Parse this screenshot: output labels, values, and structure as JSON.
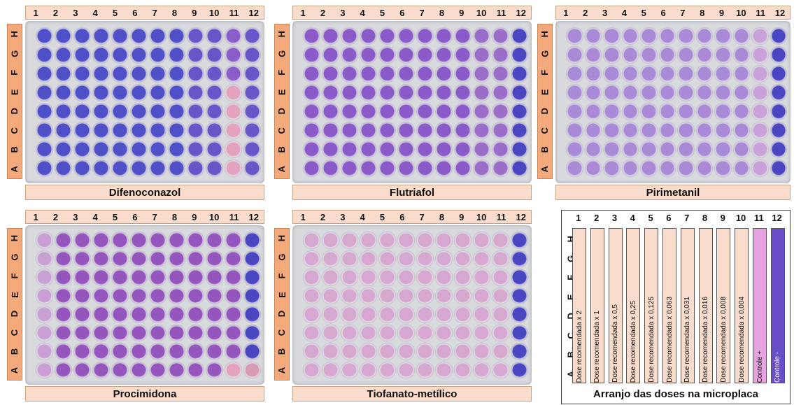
{
  "col_labels": [
    "1",
    "2",
    "3",
    "4",
    "5",
    "6",
    "7",
    "8",
    "9",
    "10",
    "11",
    "12"
  ],
  "row_labels": [
    "A",
    "B",
    "C",
    "D",
    "E",
    "F",
    "G",
    "H"
  ],
  "plates": [
    {
      "name": "Difenoconazol",
      "pink_wells": {
        "col11_rows": "A-E"
      }
    },
    {
      "name": "Flutriafol"
    },
    {
      "name": "Pirimetanil"
    },
    {
      "name": "Procimidona"
    },
    {
      "name": "Tiofanato-metílico"
    }
  ],
  "layout": {
    "title": "Arranjo das doses na microplaca",
    "strips": [
      {
        "label": "Dose recomendada x 2",
        "color": "#f9dccb"
      },
      {
        "label": "Dose recomendada x 1",
        "color": "#f9dccb"
      },
      {
        "label": "Dose recomendada x 0,5",
        "color": "#f9dccb"
      },
      {
        "label": "Dose recomendada x 0,25",
        "color": "#f9dccb"
      },
      {
        "label": "Dose recomendada x 0,125",
        "color": "#f9dccb"
      },
      {
        "label": "Dose recomendada x 0,063",
        "color": "#f9dccb"
      },
      {
        "label": "Dose recomendada x 0,031",
        "color": "#f9dccb"
      },
      {
        "label": "Dose recomendada x 0,016",
        "color": "#f9dccb"
      },
      {
        "label": "Dose recomendada x 0,008",
        "color": "#f9dccb"
      },
      {
        "label": "Dose recomendada x 0,004",
        "color": "#f9dccb"
      },
      {
        "label": "Controle +",
        "color": "#e6a3e0"
      },
      {
        "label": "Controle -",
        "color": "#6a4ec9"
      }
    ]
  },
  "colors": {
    "label_bar": "#f9dccb",
    "row_bar": "#f4a97a",
    "blue_well": "#4f4fc8",
    "violet_well": "#7d4fc0",
    "pink_well": "#e3a2c0",
    "pale_well": "#c5a5d8"
  }
}
